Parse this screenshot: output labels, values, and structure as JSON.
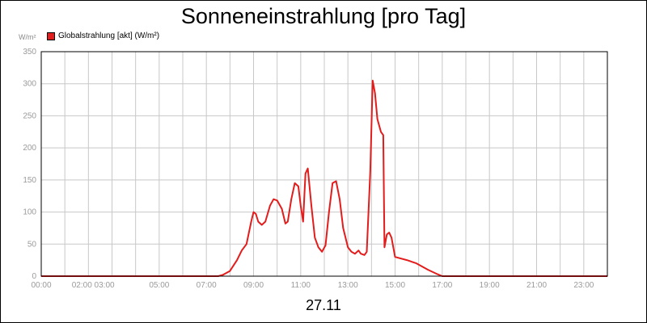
{
  "chart_data": {
    "type": "line",
    "title": "Sonneneinstrahlung [pro Tag]",
    "unit_label": "W/m²",
    "xlabel": "27.11",
    "ylim": [
      0,
      350
    ],
    "grid": true,
    "legend_placement": "top-left",
    "y_ticks": [
      "0",
      "50",
      "100",
      "150",
      "200",
      "250",
      "300",
      "350"
    ],
    "x_ticks": [
      {
        "h": 0,
        "label": "00:00"
      },
      {
        "h": 2.2,
        "label": "02:00 03:00"
      },
      {
        "h": 5,
        "label": "05:00"
      },
      {
        "h": 7,
        "label": "07:00"
      },
      {
        "h": 9,
        "label": "09:00"
      },
      {
        "h": 11,
        "label": "11:00"
      },
      {
        "h": 13,
        "label": "13:00"
      },
      {
        "h": 15,
        "label": "15:00"
      },
      {
        "h": 17,
        "label": "17:00"
      },
      {
        "h": 19,
        "label": "19:00"
      },
      {
        "h": 21,
        "label": "21:00"
      },
      {
        "h": 23,
        "label": "23:00"
      }
    ],
    "grid_hours": [
      1,
      2,
      3,
      4,
      5,
      6,
      7,
      8,
      9,
      10,
      11,
      12,
      13,
      14,
      15,
      16,
      17,
      18,
      19,
      20,
      21,
      22,
      23
    ],
    "series": [
      {
        "name": "Globalstrahlung [akt] (W/m²)",
        "color": "#e31c1c",
        "x": [
          0,
          7.5,
          7.7,
          8.0,
          8.3,
          8.5,
          8.7,
          8.9,
          9.0,
          9.1,
          9.2,
          9.35,
          9.5,
          9.7,
          9.85,
          10.0,
          10.2,
          10.35,
          10.45,
          10.6,
          10.75,
          10.9,
          11.0,
          11.1,
          11.2,
          11.3,
          11.45,
          11.6,
          11.75,
          11.9,
          12.05,
          12.2,
          12.35,
          12.5,
          12.65,
          12.8,
          13.0,
          13.15,
          13.3,
          13.45,
          13.55,
          13.7,
          13.8,
          13.95,
          14.05,
          14.15,
          14.25,
          14.4,
          14.5,
          14.55,
          14.65,
          14.75,
          14.85,
          15.0,
          15.5,
          15.9,
          16.4,
          16.8,
          17.0,
          24
        ],
        "y": [
          0,
          0,
          2,
          8,
          25,
          40,
          50,
          85,
          100,
          97,
          85,
          80,
          85,
          110,
          120,
          118,
          105,
          82,
          85,
          120,
          145,
          140,
          110,
          85,
          160,
          168,
          110,
          60,
          45,
          38,
          48,
          100,
          145,
          148,
          120,
          75,
          45,
          38,
          35,
          40,
          35,
          33,
          38,
          165,
          305,
          285,
          245,
          225,
          220,
          45,
          65,
          68,
          60,
          30,
          25,
          20,
          10,
          3,
          0,
          0
        ]
      }
    ]
  }
}
